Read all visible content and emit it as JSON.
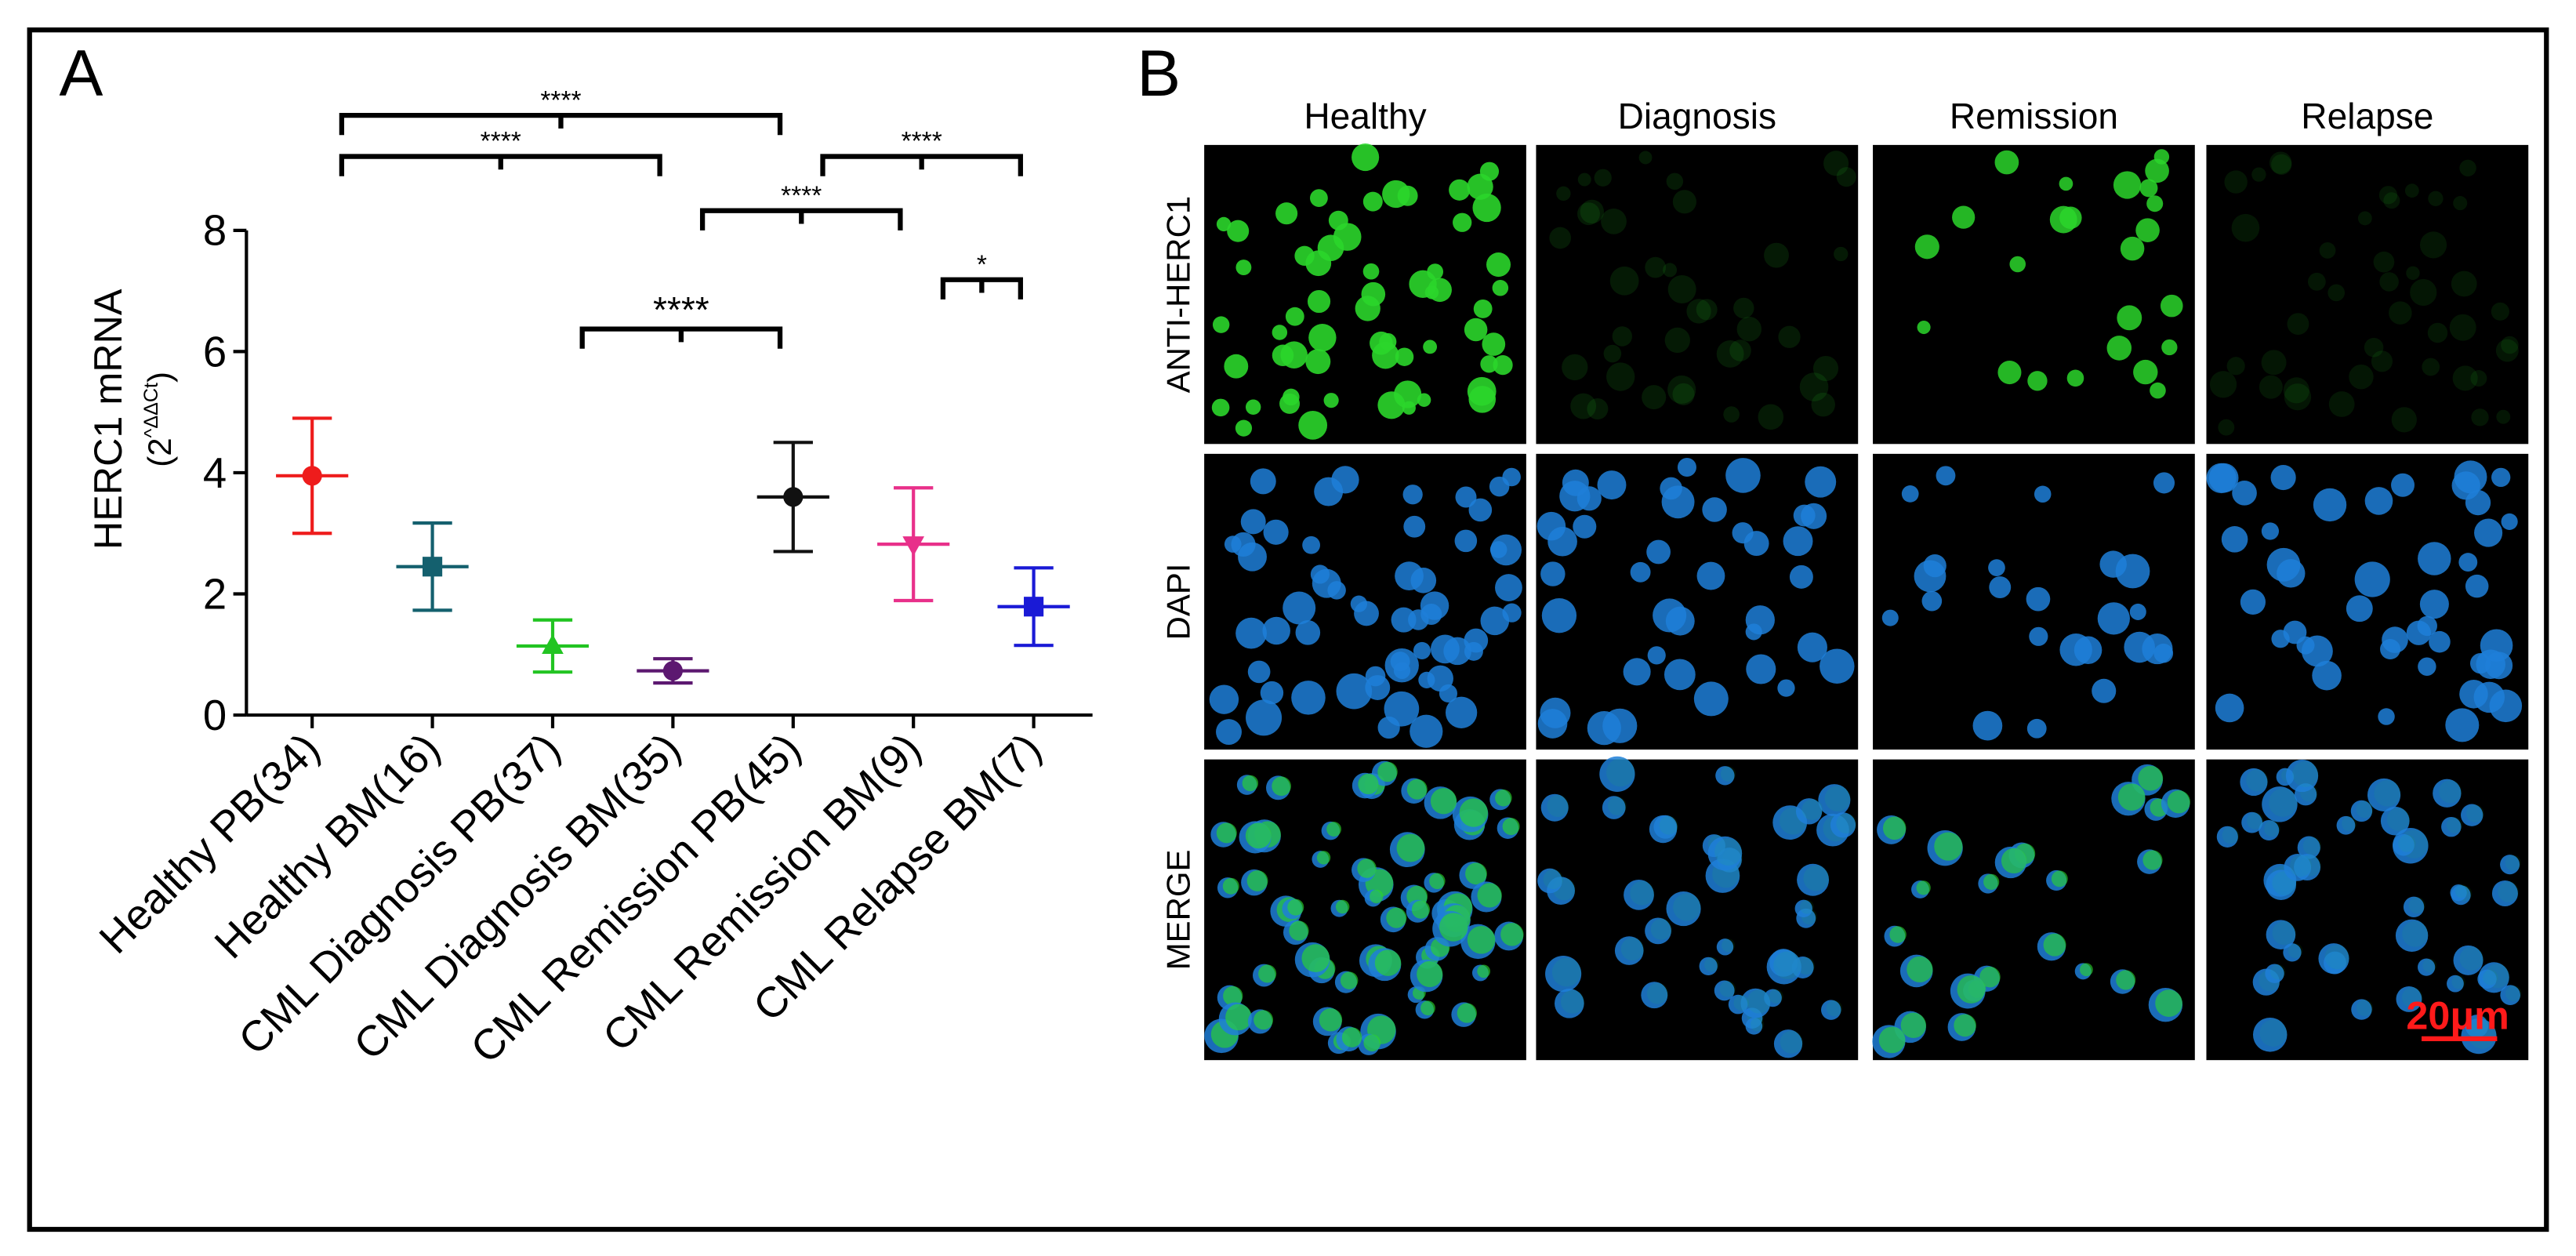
{
  "panel_a": {
    "label": "A"
  },
  "panel_b": {
    "label": "B",
    "columns": [
      "Healthy",
      "Diagnosis",
      "Remission",
      "Relapse"
    ],
    "rows": [
      "ANTI-HERC1",
      "DAPI",
      "MERGE"
    ],
    "scale_bar": "20μm"
  },
  "chart_data": {
    "type": "scatter",
    "ylabel": "HERC1 mRNA",
    "y_unit_base": "(2",
    "y_unit_sup": "^ΔΔCt",
    "y_unit_close": ")",
    "ylim": [
      0,
      8
    ],
    "yticks": [
      0,
      2,
      4,
      6,
      8
    ],
    "groups": [
      {
        "name": "Healthy PB(34)",
        "color": "#ee1c1c",
        "marker": "circle",
        "mean": 3.95,
        "sd": 0.95
      },
      {
        "name": "Healthy BM(16)",
        "color": "#14606e",
        "marker": "square",
        "mean": 2.45,
        "sd": 0.72
      },
      {
        "name": "CML Diagnosis PB(37)",
        "color": "#22c422",
        "marker": "triangle-up",
        "mean": 1.14,
        "sd": 0.43
      },
      {
        "name": "CML Diagnosis BM(35)",
        "color": "#5c1870",
        "marker": "circle",
        "mean": 0.73,
        "sd": 0.2
      },
      {
        "name": "CML Remission PB(45)",
        "color": "#111111",
        "marker": "circle",
        "mean": 3.6,
        "sd": 0.9
      },
      {
        "name": "CML Remission BM(9)",
        "color": "#e8308a",
        "marker": "triangle-down",
        "mean": 2.82,
        "sd": 0.93
      },
      {
        "name": "CML Relapse BM(7)",
        "color": "#1a1ad6",
        "marker": "square",
        "mean": 1.79,
        "sd": 0.64
      }
    ],
    "brackets": [
      {
        "groups": [
          0,
          4
        ],
        "label": "****"
      },
      {
        "groups": [
          0,
          3
        ],
        "label": "****"
      },
      {
        "groups": [
          4,
          6
        ],
        "label": "****"
      },
      {
        "groups": [
          3,
          5
        ],
        "label": "****"
      },
      {
        "groups": [
          2,
          4
        ],
        "label": "****"
      },
      {
        "groups": [
          5,
          6
        ],
        "label": "*"
      }
    ]
  }
}
